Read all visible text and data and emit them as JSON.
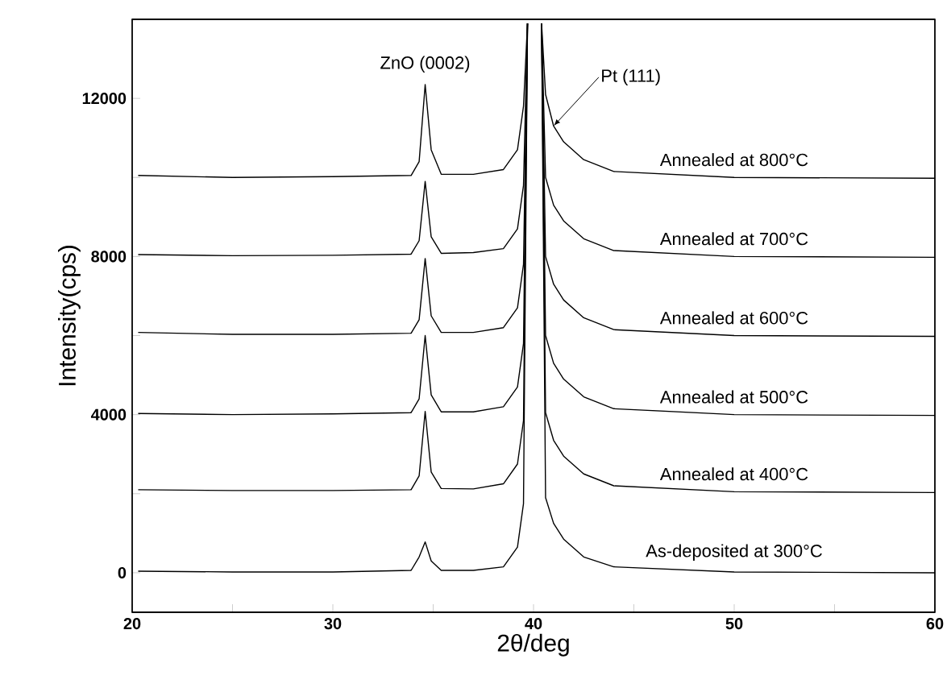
{
  "chart_data": {
    "type": "line",
    "xlabel": "2θ/deg",
    "ylabel": "Intensity(cps)",
    "x": [
      20.3,
      25,
      30,
      33.9,
      34.3,
      34.6,
      34.9,
      35.4,
      37,
      38.5,
      39.2,
      39.5,
      39.7,
      40.0,
      40.4,
      40.6,
      41.0,
      41.5,
      42.5,
      44,
      50,
      60
    ],
    "series": [
      {
        "name": "As-deposited at 300°C",
        "color": "#000000",
        "values": [
          40,
          20,
          20,
          60,
          400,
          780,
          300,
          60,
          60,
          150,
          650,
          1750,
          13900,
          null,
          13900,
          1900,
          1250,
          850,
          400,
          150,
          20,
          0
        ]
      },
      {
        "name": "Annealed at 400°C",
        "color": "#000000",
        "values": [
          2100,
          2080,
          2080,
          2100,
          2450,
          4080,
          2550,
          2130,
          2120,
          2250,
          2750,
          3850,
          13900,
          null,
          13900,
          4050,
          3350,
          2950,
          2500,
          2200,
          2050,
          2030
        ]
      },
      {
        "name": "Annealed at 500°C",
        "color": "#000000",
        "values": [
          4030,
          4000,
          4020,
          4050,
          4400,
          6000,
          4500,
          4070,
          4070,
          4200,
          4700,
          5800,
          13900,
          null,
          13900,
          6000,
          5300,
          4900,
          4450,
          4150,
          4000,
          3980
        ]
      },
      {
        "name": "Annealed at 600°C",
        "color": "#000000",
        "values": [
          6080,
          6030,
          6030,
          6060,
          6400,
          7950,
          6500,
          6080,
          6080,
          6200,
          6700,
          7800,
          13900,
          null,
          13900,
          8000,
          7300,
          6900,
          6450,
          6150,
          6000,
          5980
        ]
      },
      {
        "name": "Annealed at 700°C",
        "color": "#000000",
        "values": [
          8050,
          8020,
          8030,
          8060,
          8400,
          9900,
          8500,
          8080,
          8100,
          8200,
          8700,
          9800,
          13900,
          null,
          13900,
          10000,
          9300,
          8900,
          8450,
          8150,
          8000,
          7980
        ]
      },
      {
        "name": "Annealed at 800°C",
        "color": "#000000",
        "values": [
          10050,
          10000,
          10020,
          10050,
          10400,
          12350,
          10700,
          10080,
          10080,
          10200,
          10700,
          11800,
          13900,
          null,
          13900,
          12100,
          11300,
          10900,
          10450,
          10150,
          10000,
          9980
        ]
      }
    ],
    "annotations": [
      {
        "text": "ZnO (0002)",
        "x": 34.6,
        "y": 12350
      },
      {
        "text": "Pt (111)",
        "x": 41.0,
        "y": 11300
      }
    ],
    "xlim": [
      20,
      60
    ],
    "ylim": [
      -1000,
      14000
    ],
    "xticks": [
      20,
      {
        "value": 25,
        "label": null
      },
      30,
      {
        "value": 35,
        "label": null
      },
      40,
      {
        "value": 45,
        "label": null
      },
      50,
      {
        "value": 55,
        "label": null
      },
      60
    ],
    "yticks": [
      0,
      {
        "value": 2000,
        "label": null
      },
      4000,
      {
        "value": 6000,
        "label": null
      },
      8000,
      {
        "value": 10000,
        "label": null
      },
      12000
    ],
    "grid": false,
    "legend": false,
    "marker": "none",
    "line_style": "solid"
  }
}
